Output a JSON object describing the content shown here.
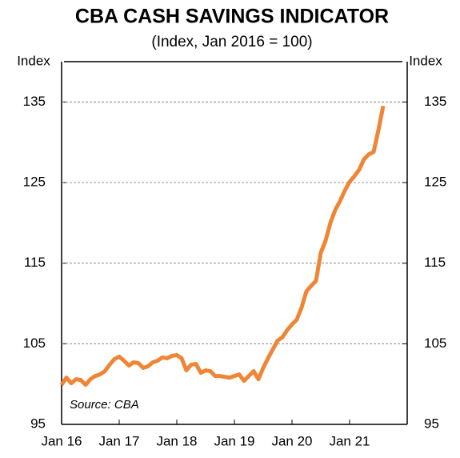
{
  "chart_data": {
    "type": "line",
    "title": "CBA CASH SAVINGS INDICATOR",
    "subtitle": "(Index, Jan 2016 = 100)",
    "y_label": "Index",
    "y2_label": "Index",
    "annotation": "Source: CBA",
    "categories": [
      "Jan 16",
      null,
      null,
      null,
      null,
      null,
      null,
      null,
      null,
      null,
      null,
      null,
      "Jan 17",
      null,
      null,
      null,
      null,
      null,
      null,
      null,
      null,
      null,
      null,
      null,
      "Jan 18",
      null,
      null,
      null,
      null,
      null,
      null,
      null,
      null,
      null,
      null,
      null,
      "Jan 19",
      null,
      null,
      null,
      null,
      null,
      null,
      null,
      null,
      null,
      null,
      null,
      "Jan 20",
      null,
      null,
      null,
      null,
      null,
      null,
      null,
      null,
      null,
      null,
      null,
      "Jan 21",
      null,
      null,
      null,
      null,
      null,
      null,
      null,
      null,
      null,
      null,
      null
    ],
    "series": [
      {
        "name": "CBA cash savings indicator",
        "color": "#ef8535",
        "values": [
          99.9,
          100.8,
          100.1,
          100.6,
          100.5,
          99.9,
          100.6,
          101.0,
          101.2,
          101.6,
          102.4,
          103.1,
          103.4,
          102.9,
          102.3,
          102.7,
          102.6,
          102.0,
          102.2,
          102.7,
          102.9,
          103.3,
          103.2,
          103.5,
          103.6,
          103.2,
          101.7,
          102.4,
          102.5,
          101.4,
          101.7,
          101.6,
          101.0,
          101.0,
          100.9,
          100.8,
          101.0,
          101.2,
          100.4,
          101.0,
          101.6,
          100.6,
          102.0,
          103.2,
          104.3,
          105.4,
          105.8,
          106.7,
          107.4,
          108.0,
          109.5,
          111.5,
          112.2,
          112.8,
          116.3,
          117.8,
          120.0,
          121.6,
          122.7,
          124.0,
          125.1,
          125.8,
          126.6,
          127.9,
          128.5,
          128.8,
          131.5,
          134.5,
          null,
          null,
          null,
          null
        ]
      }
    ],
    "ylim": [
      95,
      140
    ],
    "yticks": [
      95,
      105,
      115,
      125,
      135
    ],
    "y2lim": [
      95,
      140
    ],
    "y2ticks": [
      95,
      105,
      115,
      125,
      135
    ],
    "grid": true
  }
}
